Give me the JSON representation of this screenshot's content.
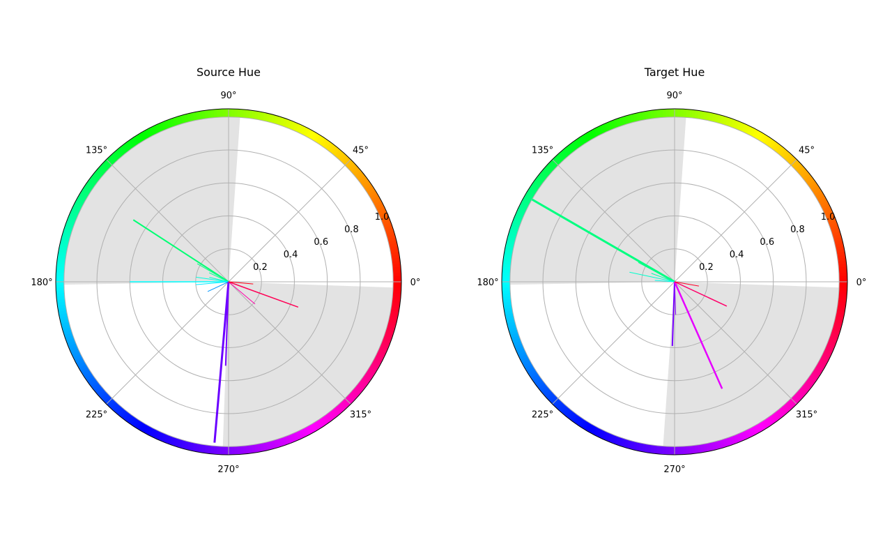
{
  "chart_data": [
    {
      "type": "polar-hue-histogram",
      "title": "Source Hue",
      "angle_ticks_deg": [
        0,
        45,
        90,
        135,
        180,
        225,
        270,
        315
      ],
      "angle_tick_labels": [
        "0°",
        "45°",
        "90°",
        "135°",
        "180°",
        "225°",
        "270°",
        "315°"
      ],
      "radial_ticks": [
        0.2,
        0.4,
        0.6,
        0.8,
        1.0
      ],
      "radial_tick_labels": [
        "0.2",
        "0.4",
        "0.6",
        "0.8",
        "1.0"
      ],
      "rlim": [
        0,
        1.05
      ],
      "grid": true,
      "hue_ring": {
        "r_inner": 1.0,
        "r_outer": 1.05,
        "segments": 360
      },
      "shaded_sectors": [
        {
          "start_deg": 86,
          "end_deg": 181,
          "color": "#e3e3e3"
        },
        {
          "start_deg": 268,
          "end_deg": 358,
          "color": "#e3e3e3"
        }
      ],
      "series": [
        {
          "angle_deg": 147,
          "value": 0.69,
          "width": 2
        },
        {
          "angle_deg": 150,
          "value": 0.22,
          "width": 1
        },
        {
          "angle_deg": 155,
          "value": 0.13,
          "width": 1
        },
        {
          "angle_deg": 167,
          "value": 0.12,
          "width": 1
        },
        {
          "angle_deg": 172,
          "value": 0.2,
          "width": 1
        },
        {
          "angle_deg": 180,
          "value": 0.6,
          "width": 1.5
        },
        {
          "angle_deg": 185,
          "value": 0.2,
          "width": 1
        },
        {
          "angle_deg": 205,
          "value": 0.14,
          "width": 1
        },
        {
          "angle_deg": 265,
          "value": 0.98,
          "width": 3
        },
        {
          "angle_deg": 268,
          "value": 0.51,
          "width": 2
        },
        {
          "angle_deg": 320,
          "value": 0.21,
          "width": 1
        },
        {
          "angle_deg": 340,
          "value": 0.45,
          "width": 1.5
        },
        {
          "angle_deg": 355,
          "value": 0.15,
          "width": 1
        }
      ]
    },
    {
      "type": "polar-hue-histogram",
      "title": "Target Hue",
      "angle_ticks_deg": [
        0,
        45,
        90,
        135,
        180,
        225,
        270,
        315
      ],
      "angle_tick_labels": [
        "0°",
        "45°",
        "90°",
        "135°",
        "180°",
        "225°",
        "270°",
        "315°"
      ],
      "radial_ticks": [
        0.2,
        0.4,
        0.6,
        0.8,
        1.0
      ],
      "radial_tick_labels": [
        "0.2",
        "0.4",
        "0.6",
        "0.8",
        "1.0"
      ],
      "rlim": [
        0,
        1.05
      ],
      "grid": true,
      "hue_ring": {
        "r_inner": 1.0,
        "r_outer": 1.05,
        "segments": 360
      },
      "shaded_sectors": [
        {
          "start_deg": 86,
          "end_deg": 181,
          "color": "#e3e3e3"
        },
        {
          "start_deg": 266,
          "end_deg": 358,
          "color": "#e3e3e3"
        }
      ],
      "series": [
        {
          "angle_deg": 150,
          "value": 1.0,
          "width": 3
        },
        {
          "angle_deg": 152,
          "value": 0.25,
          "width": 1
        },
        {
          "angle_deg": 160,
          "value": 0.15,
          "width": 1
        },
        {
          "angle_deg": 168,
          "value": 0.28,
          "width": 1
        },
        {
          "angle_deg": 176,
          "value": 0.12,
          "width": 1
        },
        {
          "angle_deg": 268,
          "value": 0.39,
          "width": 2
        },
        {
          "angle_deg": 272,
          "value": 0.2,
          "width": 1
        },
        {
          "angle_deg": 294,
          "value": 0.71,
          "width": 2.5
        },
        {
          "angle_deg": 335,
          "value": 0.35,
          "width": 1.5
        },
        {
          "angle_deg": 350,
          "value": 0.15,
          "width": 1
        }
      ]
    }
  ]
}
